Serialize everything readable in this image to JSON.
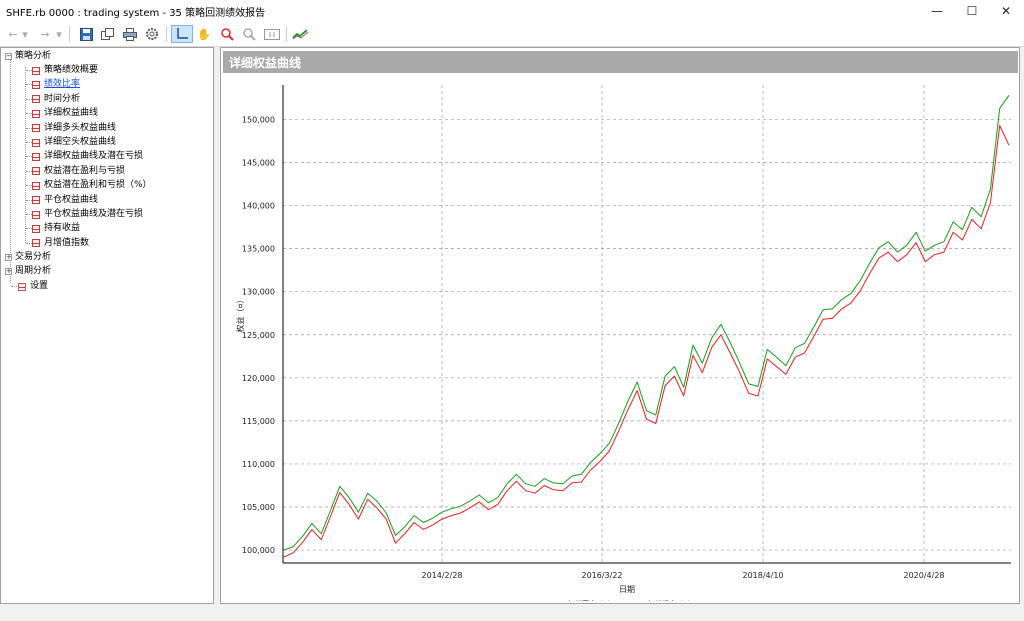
{
  "window": {
    "title": "SHFE.rb 0000 : trading system - 35 策略回测绩效报告"
  },
  "window_buttons": [
    "—",
    "☐",
    "✕"
  ],
  "tree": {
    "root": "策略分析",
    "items": [
      "策略绩效概要",
      "绩效比率",
      "时间分析",
      "详细权益曲线",
      "详细多头权益曲线",
      "详细空头权益曲线",
      "详细权益曲线及潜在亏损",
      "权益潜在盈利与亏损",
      "权益潜在盈利和亏损（%）",
      "平仓权益曲线",
      "平仓权益曲线及潜在亏损",
      "持有收益",
      "月增值指数"
    ],
    "sections": [
      "交易分析",
      "周期分析"
    ],
    "settings": "设置"
  },
  "panel": {
    "title": "详细权益曲线"
  },
  "chart_data": {
    "type": "line",
    "title": "",
    "xlabel": "日期",
    "ylabel": "权益（¤）",
    "ylim": [
      98500,
      154000
    ],
    "yticks": [
      100000,
      105000,
      110000,
      115000,
      120000,
      125000,
      130000,
      135000,
      140000,
      145000,
      150000
    ],
    "ytick_labels": [
      "100,000",
      "105,000",
      "110,000",
      "115,000",
      "120,000",
      "125,000",
      "130,000",
      "135,000",
      "140,000",
      "145,000",
      "150,000"
    ],
    "xticks": [
      "2014/2/28",
      "2016/3/22",
      "2018/4/10",
      "2020/4/28"
    ],
    "grid": true,
    "legend": "bottom-center",
    "series": [
      {
        "name": "权益高点（¤）",
        "color": "#1a9a1a",
        "values": [
          100000,
          100400,
          101600,
          103100,
          101900,
          104600,
          107400,
          106100,
          104400,
          106600,
          105700,
          104300,
          101700,
          102700,
          104000,
          103200,
          103700,
          104400,
          104800,
          105100,
          105700,
          106400,
          105500,
          106100,
          107700,
          108800,
          107700,
          107400,
          108300,
          107800,
          107700,
          108600,
          108800,
          110200,
          111200,
          112400,
          114700,
          117300,
          119500,
          116200,
          115700,
          120200,
          121300,
          118900,
          123800,
          121700,
          124600,
          126200,
          124100,
          121800,
          119300,
          119000,
          123300,
          122400,
          121400,
          123500,
          124000,
          125900,
          127900,
          128000,
          129100,
          129800,
          131300,
          133300,
          135100,
          135800,
          134600,
          135400,
          136900,
          134700,
          135400,
          135800,
          138100,
          137200,
          139800,
          138700,
          141900,
          151300,
          152800
        ]
      },
      {
        "name": "权益低点（¤）",
        "color": "#e02020",
        "values": [
          99200,
          99700,
          100900,
          102400,
          101200,
          103900,
          106700,
          105300,
          103600,
          105900,
          104900,
          103600,
          100800,
          101900,
          103200,
          102400,
          102900,
          103600,
          104000,
          104300,
          104900,
          105600,
          104700,
          105300,
          106900,
          108000,
          106900,
          106600,
          107500,
          107000,
          106900,
          107800,
          107900,
          109300,
          110300,
          111500,
          113800,
          116300,
          118500,
          115200,
          114700,
          119100,
          120200,
          117900,
          122600,
          120600,
          123500,
          125000,
          122900,
          120700,
          118200,
          117900,
          122200,
          121300,
          120400,
          122400,
          122900,
          124800,
          126800,
          126900,
          128000,
          128700,
          130100,
          132100,
          133900,
          134600,
          133500,
          134300,
          135700,
          133500,
          134300,
          134600,
          136900,
          136000,
          138400,
          137300,
          140300,
          149300,
          147000
        ]
      }
    ]
  }
}
